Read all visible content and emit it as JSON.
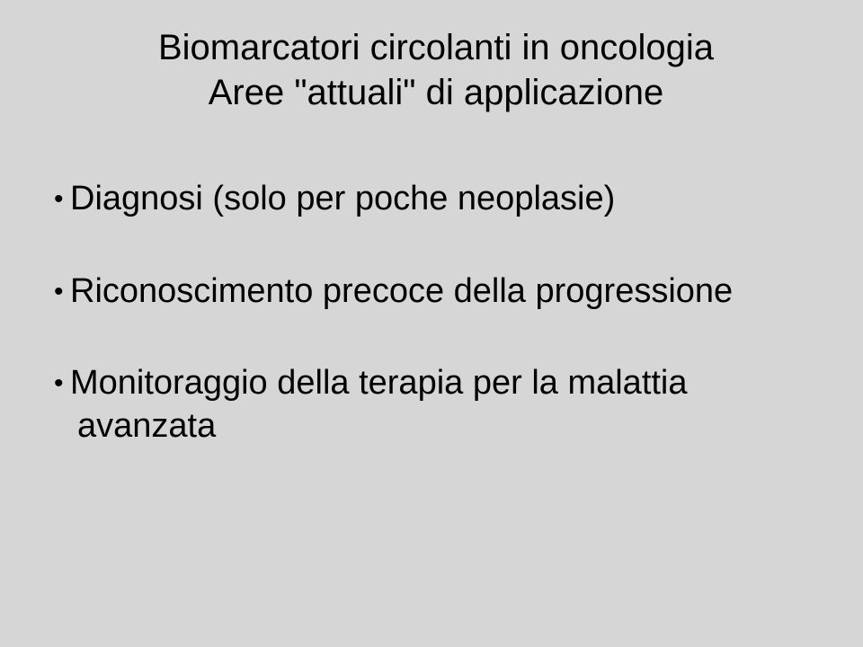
{
  "slide": {
    "background_color": "#d6d6d6",
    "text_color": "#000000",
    "font_family": "Comic Sans MS",
    "title": {
      "line1": "Biomarcatori circolanti in oncologia",
      "line2": "Aree \"attuali\" di applicazione",
      "fontsize": 40,
      "align": "center"
    },
    "bullets": {
      "fontsize": 38,
      "marker": "•",
      "items": [
        {
          "text": "Diagnosi (solo per poche neoplasie)"
        },
        {
          "text": "Riconoscimento precoce della progressione"
        },
        {
          "text_line1": "Monitoraggio della terapia per la malattia",
          "text_line2": "avanzata"
        }
      ]
    }
  }
}
